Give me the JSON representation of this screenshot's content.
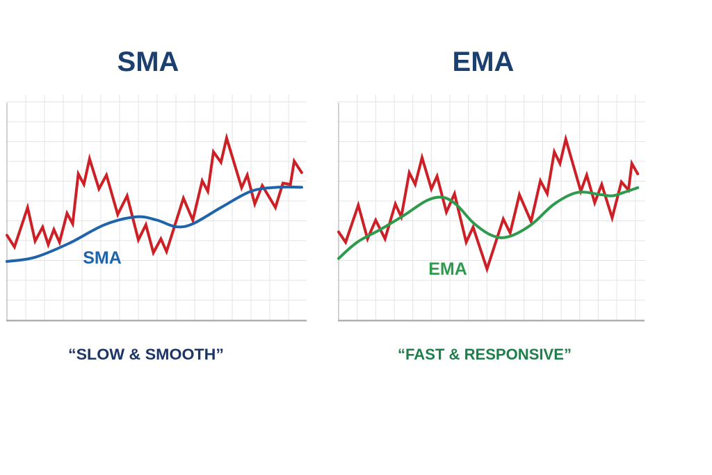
{
  "colors": {
    "title": "#1b3f6e",
    "price_line": "#cc2026",
    "sma_line": "#1f63aa",
    "ema_line": "#2e9a4c",
    "sma_caption": "#1b3566",
    "ema_caption": "#1f7f4a",
    "grid": "#e3e3e3",
    "axis": "#b5b5b5"
  },
  "chart_data": [
    {
      "type": "line",
      "title": "SMA",
      "caption": "“SLOW & SMOOTH”",
      "grid": true,
      "xlim": [
        0,
        16
      ],
      "ylim": [
        0,
        11
      ],
      "series": [
        {
          "role": "price",
          "x": [
            0,
            0.4,
            1.1,
            1.5,
            1.9,
            2.2,
            2.5,
            2.8,
            3.2,
            3.5,
            3.8,
            4.1,
            4.4,
            4.9,
            5.3,
            5.9,
            6.4,
            7.0,
            7.4,
            7.8,
            8.2,
            8.5,
            9.4,
            9.9,
            10.4,
            10.7,
            11.0,
            11.4,
            11.7,
            12.5,
            12.8,
            13.2,
            13.6,
            14.3,
            14.7,
            15.1,
            15.3,
            15.7
          ],
          "y": [
            4.27,
            3.68,
            5.67,
            3.98,
            4.68,
            3.8,
            4.56,
            3.92,
            5.38,
            4.85,
            7.37,
            6.84,
            8.13,
            6.61,
            7.31,
            5.32,
            6.26,
            4.04,
            4.8,
            3.39,
            4.09,
            3.45,
            6.14,
            5.03,
            7.02,
            6.49,
            8.48,
            7.95,
            9.18,
            6.67,
            7.31,
            5.85,
            6.78,
            5.67,
            6.9,
            6.84,
            8.01,
            7.43
          ]
        },
        {
          "role": "average",
          "name": "SMA",
          "x": [
            0,
            1.5,
            3.3,
            5.2,
            6.9,
            8.0,
            9.0,
            9.9,
            11.4,
            13.0,
            14.4,
            15.7
          ],
          "y": [
            2.95,
            3.16,
            3.86,
            4.8,
            5.2,
            5.03,
            4.7,
            4.85,
            5.67,
            6.49,
            6.69,
            6.69
          ]
        }
      ]
    },
    {
      "type": "line",
      "title": "EMA",
      "caption": "“FAST & RESPONSIVE”",
      "grid": true,
      "xlim": [
        0,
        16.5
      ],
      "ylim": [
        0,
        11
      ],
      "series": [
        {
          "role": "price",
          "x": [
            0,
            0.38,
            1.06,
            1.56,
            2.0,
            2.5,
            3.06,
            3.38,
            3.81,
            4.13,
            4.5,
            5.0,
            5.31,
            5.81,
            6.25,
            6.88,
            7.25,
            8.0,
            8.88,
            9.25,
            9.75,
            10.38,
            10.88,
            11.25,
            11.63,
            11.94,
            12.25,
            13.06,
            13.38,
            13.81,
            14.19,
            14.75,
            15.25,
            15.63,
            15.81,
            16.13
          ],
          "y": [
            4.44,
            3.92,
            5.79,
            4.09,
            5.03,
            4.09,
            5.85,
            5.2,
            7.43,
            6.84,
            8.19,
            6.61,
            7.25,
            5.44,
            6.37,
            3.92,
            4.68,
            2.57,
            5.09,
            4.39,
            6.32,
            4.97,
            7.02,
            6.37,
            8.48,
            7.89,
            9.12,
            6.49,
            7.31,
            5.91,
            6.84,
            5.15,
            6.96,
            6.55,
            7.89,
            7.37
          ]
        },
        {
          "role": "average",
          "name": "EMA",
          "x": [
            0,
            1.0,
            2.25,
            3.5,
            4.75,
            5.63,
            6.38,
            7.25,
            8.25,
            9.13,
            10.38,
            11.63,
            12.88,
            14.13,
            14.75,
            15.38,
            16.13
          ],
          "y": [
            3.1,
            3.92,
            4.56,
            5.26,
            6.02,
            6.18,
            5.79,
            4.91,
            4.27,
            4.19,
            4.8,
            5.85,
            6.43,
            6.32,
            6.26,
            6.43,
            6.67
          ]
        }
      ]
    }
  ]
}
